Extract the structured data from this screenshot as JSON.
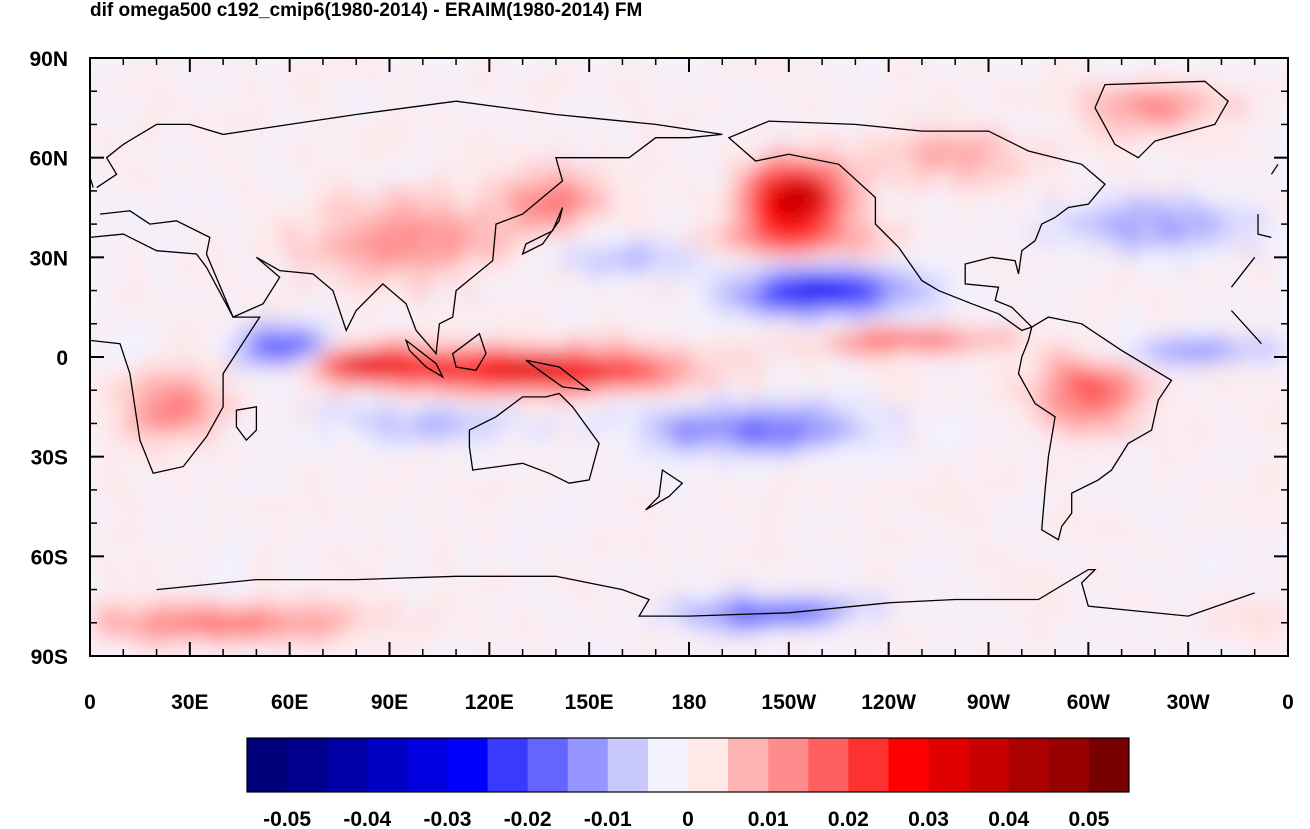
{
  "title": "dif omega500 c192_cmip6(1980-2014) - ERAIM(1980-2014) FM",
  "map": {
    "projection": "cylindrical equidistant",
    "lon_range": [
      0,
      360
    ],
    "lat_range": [
      -90,
      90
    ],
    "lat_labels": [
      "90N",
      "60N",
      "30N",
      "0",
      "30S",
      "60S",
      "90S"
    ],
    "lon_labels": [
      "0",
      "30E",
      "60E",
      "90E",
      "120E",
      "150E",
      "180",
      "150W",
      "120W",
      "90W",
      "60W",
      "30W",
      "0"
    ],
    "features": [
      {
        "name": "positive-central-north-pacific",
        "lon": [
          -160,
          -135
        ],
        "lat": [
          38,
          58
        ]
      },
      {
        "name": "positive-maritime-continent-band",
        "lon": [
          95,
          175
        ],
        "lat": [
          -10,
          2
        ]
      },
      {
        "name": "positive-indian-ocean-band",
        "lon": [
          60,
          100
        ],
        "lat": [
          -6,
          2
        ]
      },
      {
        "name": "negative-subtropical-pacific",
        "lon": [
          -160,
          -115
        ],
        "lat": [
          12,
          28
        ]
      },
      {
        "name": "negative-west-indian-ocean",
        "lon": [
          45,
          75
        ],
        "lat": [
          -5,
          8
        ]
      },
      {
        "name": "negative-south-pacific-band",
        "lon": [
          165,
          -110
        ],
        "lat": [
          -35,
          -10
        ]
      },
      {
        "name": "positive-east-pacific-itcz",
        "lon": [
          -140,
          -90
        ],
        "lat": [
          2,
          8
        ]
      },
      {
        "name": "negative-ross-sea",
        "lon": [
          170,
          -140
        ],
        "lat": [
          -82,
          -72
        ]
      }
    ]
  },
  "colorbar": {
    "labels": [
      "-0.05",
      "-0.04",
      "-0.03",
      "-0.02",
      "-0.01",
      "0",
      "0.01",
      "0.02",
      "0.03",
      "0.04",
      "0.05"
    ],
    "levels": [
      -0.055,
      -0.05,
      -0.045,
      -0.04,
      -0.035,
      -0.03,
      -0.025,
      -0.02,
      -0.015,
      -0.01,
      -0.005,
      0,
      0.005,
      0.01,
      0.015,
      0.02,
      0.025,
      0.03,
      0.035,
      0.04,
      0.045,
      0.05,
      0.055
    ],
    "colors": [
      "#00007a",
      "#00008c",
      "#0000a6",
      "#0000c4",
      "#0000e0",
      "#0000ff",
      "#3a3aff",
      "#6464ff",
      "#9696ff",
      "#c8c8ff",
      "#f2f2ff",
      "#ffe8e8",
      "#ffb4b4",
      "#ff8c8c",
      "#ff5f5f",
      "#ff3232",
      "#ff0000",
      "#e00000",
      "#c80000",
      "#aa0000",
      "#960000",
      "#780000"
    ]
  }
}
